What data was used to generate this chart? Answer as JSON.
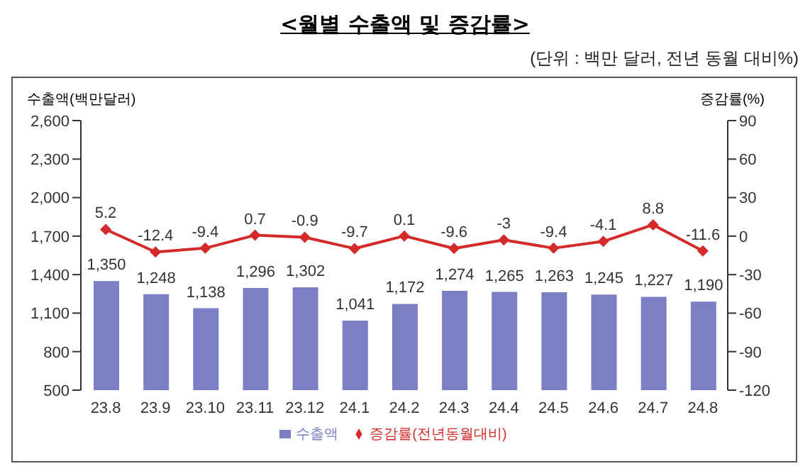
{
  "chart_data": {
    "type": "bar",
    "title": "<월별 수출액 및 증감률>",
    "subtitle": "(단위 : 백만 달러, 전년 동월 대비%)",
    "ylabel": "수출액(백만달러)",
    "y2label": "증감률(%)",
    "categories": [
      "23.8",
      "23.9",
      "23.10",
      "23.11",
      "23.12",
      "24.1",
      "24.2",
      "24.3",
      "24.4",
      "24.5",
      "24.6",
      "24.7",
      "24.8"
    ],
    "series": [
      {
        "name": "수출액",
        "color": "#7b7fc4",
        "values": [
          1350,
          1248,
          1138,
          1296,
          1302,
          1041,
          1172,
          1274,
          1265,
          1263,
          1245,
          1227,
          1190
        ],
        "value_labels": [
          "1,350",
          "1,248",
          "1,138",
          "1,296",
          "1,302",
          "1,041",
          "1,172",
          "1,274",
          "1,265",
          "1,263",
          "1,245",
          "1,227",
          "1,190"
        ]
      },
      {
        "name": "증감률(전년동월대비)",
        "type": "line",
        "axis": "y2",
        "color": "#d42a2a",
        "marker": "diamond",
        "values": [
          5.2,
          -12.4,
          -9.4,
          0.7,
          -0.9,
          -9.7,
          0.1,
          -9.6,
          -3,
          -9.4,
          -4.1,
          8.8,
          -11.6
        ],
        "value_labels": [
          "5.2",
          "-12.4",
          "-9.4",
          "0.7",
          "-0.9",
          "-9.7",
          "0.1",
          "-9.6",
          "-3",
          "-9.4",
          "-4.1",
          "8.8",
          "-11.6"
        ]
      }
    ],
    "ylim": [
      500,
      2600
    ],
    "yticks": [
      500,
      800,
      {
        "value": 1100,
        "label": "1,100"
      },
      {
        "value": 1400,
        "label": "1,400"
      },
      {
        "value": 1700,
        "label": "1,700"
      },
      {
        "value": 2000,
        "label": "2,000"
      },
      {
        "value": 2300,
        "label": "2,300"
      },
      {
        "value": 2600,
        "label": "2,600"
      }
    ],
    "y2lim": [
      -120,
      90
    ],
    "y2ticks": [
      -120,
      -90,
      -60,
      -30,
      0,
      30,
      60,
      90
    ],
    "grid": false,
    "legend": "bottom"
  }
}
